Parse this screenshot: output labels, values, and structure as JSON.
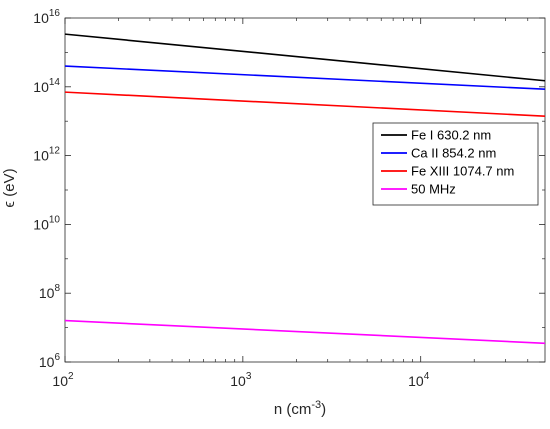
{
  "chart_data": {
    "type": "line",
    "xlabel": {
      "base": "n (cm",
      "sup": "-3",
      "close": ")"
    },
    "ylabel": "ϵ (eV)",
    "xscale": "log",
    "yscale": "log",
    "xlim": [
      100,
      50000
    ],
    "ylim": [
      1000000.0,
      1e+16
    ],
    "grid": false,
    "legend_position": "right-center",
    "x_ticks": [
      {
        "value": 100,
        "base": "10",
        "exp": "2"
      },
      {
        "value": 1000,
        "base": "10",
        "exp": "3"
      },
      {
        "value": 10000,
        "base": "10",
        "exp": "4"
      }
    ],
    "y_ticks": [
      {
        "value": 1000000.0,
        "base": "10",
        "exp": "6"
      },
      {
        "value": 100000000.0,
        "base": "10",
        "exp": "8"
      },
      {
        "value": 10000000000.0,
        "base": "10",
        "exp": "10"
      },
      {
        "value": 1000000000000.0,
        "base": "10",
        "exp": "12"
      },
      {
        "value": 100000000000000.0,
        "base": "10",
        "exp": "14"
      },
      {
        "value": 1e+16,
        "base": "10",
        "exp": "16"
      }
    ],
    "series": [
      {
        "name": "Fe I 630.2 nm",
        "color": "#000000",
        "x": [
          100,
          50000
        ],
        "y": [
          3400000000000000.0,
          150000000000000.0
        ]
      },
      {
        "name": "Ca II 854.2 nm",
        "color": "#0000ff",
        "x": [
          100,
          50000
        ],
        "y": [
          400000000000000.0,
          85000000000000.0
        ]
      },
      {
        "name": "Fe XIII 1074.7 nm",
        "color": "#ff0000",
        "x": [
          100,
          50000
        ],
        "y": [
          70000000000000.0,
          14000000000000.0
        ]
      },
      {
        "name": "50 MHz",
        "color": "#ff00ff",
        "x": [
          100,
          50000
        ],
        "y": [
          16000000.0,
          3500000.0
        ]
      }
    ]
  }
}
